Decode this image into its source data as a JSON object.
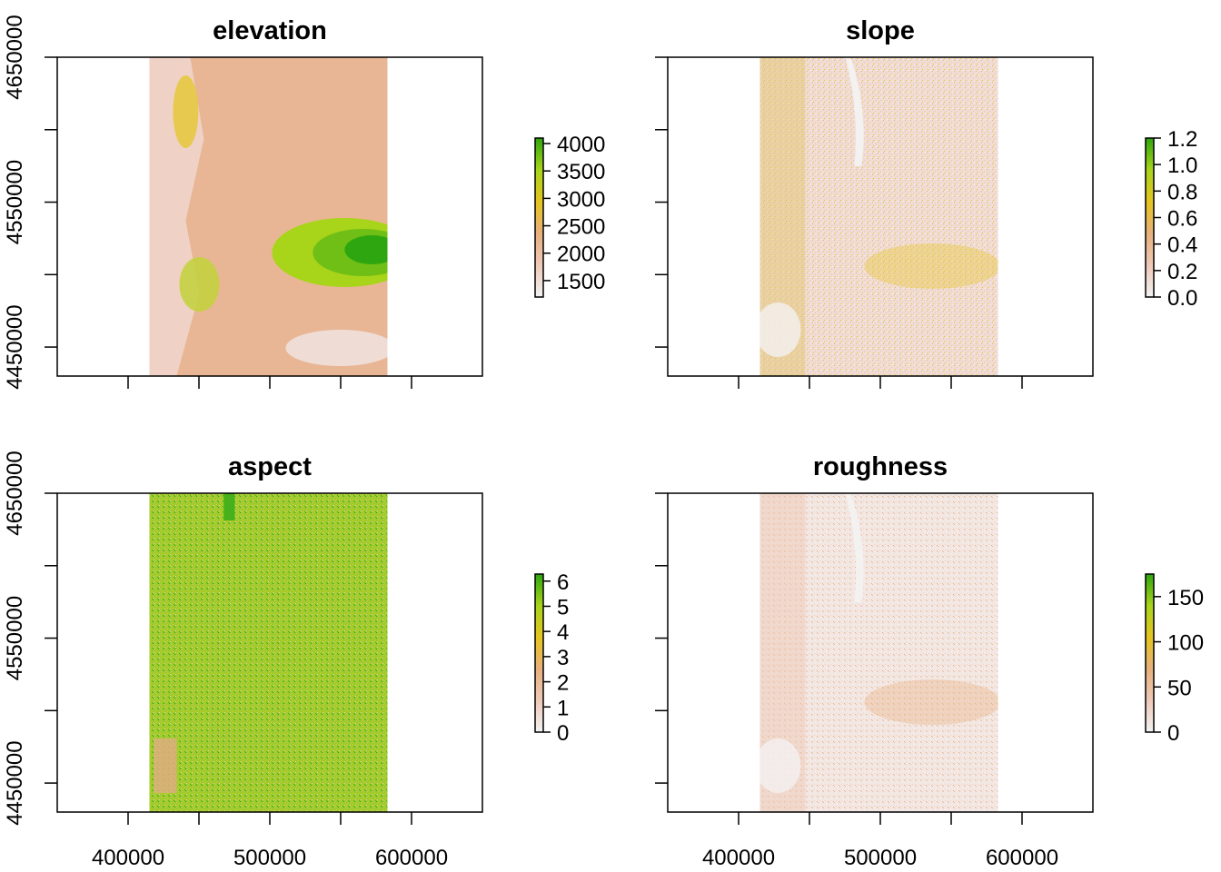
{
  "figure": {
    "layout": "2x2 panel grid"
  },
  "chart_data": [
    {
      "type": "heatmap",
      "title": "elevation",
      "xlim": [
        350000,
        650000
      ],
      "ylim": [
        4430000,
        4650000
      ],
      "raster_extent": {
        "x": [
          415000,
          583000
        ],
        "y": [
          4430000,
          4650000
        ]
      },
      "x_ticks": [
        400000,
        450000,
        500000,
        550000,
        600000
      ],
      "x_tick_labels": [
        "",
        "",
        "",
        "",
        ""
      ],
      "y_ticks": [
        4450000,
        4500000,
        4550000,
        4600000,
        4650000
      ],
      "y_tick_labels": [
        "4450000",
        "",
        "4550000",
        "",
        "4650000"
      ],
      "legend": {
        "position": "right",
        "range": [
          1200,
          4100
        ],
        "breaks": [
          4000,
          3500,
          3000,
          2500,
          2000,
          1500
        ],
        "labels": [
          "4000",
          "3500",
          "3000",
          "2500",
          "2000",
          "1500"
        ]
      },
      "palette": [
        "#f2f2f2",
        "#eec9b8",
        "#e7b07c",
        "#e5c51e",
        "#a8d41a",
        "#2ea60f"
      ]
    },
    {
      "type": "heatmap",
      "title": "slope",
      "xlim": [
        350000,
        650000
      ],
      "ylim": [
        4430000,
        4650000
      ],
      "raster_extent": {
        "x": [
          415000,
          583000
        ],
        "y": [
          4430000,
          4650000
        ]
      },
      "x_ticks": [
        400000,
        450000,
        500000,
        550000,
        600000
      ],
      "x_tick_labels": [
        "",
        "",
        "",
        "",
        ""
      ],
      "y_ticks": [
        4450000,
        4500000,
        4550000,
        4600000,
        4650000
      ],
      "y_tick_labels": [
        "",
        "",
        "",
        "",
        ""
      ],
      "legend": {
        "position": "right",
        "range": [
          0,
          1.2
        ],
        "breaks": [
          1.2,
          1.0,
          0.8,
          0.6,
          0.4,
          0.2,
          0.0
        ],
        "labels": [
          "1.2",
          "1.0",
          "0.8",
          "0.6",
          "0.4",
          "0.2",
          "0.0"
        ]
      },
      "palette": [
        "#f2f2f2",
        "#eec9b8",
        "#e7b07c",
        "#e5c51e",
        "#a8d41a",
        "#2ea60f"
      ]
    },
    {
      "type": "heatmap",
      "title": "aspect",
      "xlim": [
        350000,
        650000
      ],
      "ylim": [
        4430000,
        4650000
      ],
      "raster_extent": {
        "x": [
          415000,
          583000
        ],
        "y": [
          4430000,
          4650000
        ]
      },
      "x_ticks": [
        400000,
        450000,
        500000,
        550000,
        600000
      ],
      "x_tick_labels": [
        "400000",
        "",
        "500000",
        "",
        "600000"
      ],
      "y_ticks": [
        4450000,
        4500000,
        4550000,
        4600000,
        4650000
      ],
      "y_tick_labels": [
        "4450000",
        "",
        "4550000",
        "",
        "4650000"
      ],
      "legend": {
        "position": "right",
        "range": [
          0,
          6.28
        ],
        "breaks": [
          6,
          5,
          4,
          3,
          2,
          1,
          0
        ],
        "labels": [
          "6",
          "5",
          "4",
          "3",
          "2",
          "1",
          "0"
        ]
      },
      "palette": [
        "#f2f2f2",
        "#eec9b8",
        "#e7b07c",
        "#e5c51e",
        "#a8d41a",
        "#2ea60f"
      ]
    },
    {
      "type": "heatmap",
      "title": "roughness",
      "xlim": [
        350000,
        650000
      ],
      "ylim": [
        4430000,
        4650000
      ],
      "raster_extent": {
        "x": [
          415000,
          583000
        ],
        "y": [
          4430000,
          4650000
        ]
      },
      "x_ticks": [
        400000,
        450000,
        500000,
        550000,
        600000
      ],
      "x_tick_labels": [
        "400000",
        "",
        "500000",
        "",
        "600000"
      ],
      "y_ticks": [
        4450000,
        4500000,
        4550000,
        4600000,
        4650000
      ],
      "y_tick_labels": [
        "",
        "",
        "",
        "",
        ""
      ],
      "legend": {
        "position": "right",
        "range": [
          0,
          175
        ],
        "breaks": [
          150,
          100,
          50,
          0
        ],
        "labels": [
          "150",
          "100",
          "50",
          "0"
        ]
      },
      "palette": [
        "#f2f2f2",
        "#eec9b8",
        "#e7b07c",
        "#e5c51e",
        "#a8d41a",
        "#2ea60f"
      ]
    }
  ]
}
